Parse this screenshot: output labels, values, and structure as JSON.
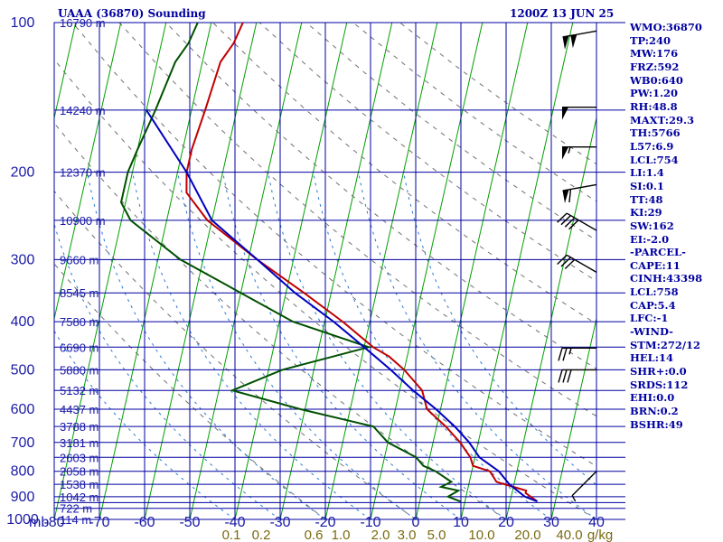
{
  "header": {
    "station": "UAAA (36870) Sounding",
    "time": "1200Z 13 JUN 25"
  },
  "stats": [
    "WMO:36870",
    "TP:240",
    "MW:176",
    "FRZ:592",
    "WB0:640",
    "PW:1.20",
    "RH:48.8",
    "MAXT:29.3",
    "TH:5766",
    "L57:6.9",
    "LCL:754",
    "LI:1.4",
    "SI:0.1",
    "TT:48",
    "KI:29",
    "SW:162",
    "EI:-2.0",
    "-PARCEL-",
    "CAPE:11",
    "CINH:43398",
    "LCL:758",
    "CAP:5.4",
    "LFC:-1",
    "-WIND-",
    "STM:272/12",
    "HEL:14",
    "SHR+:0.0",
    "SRDS:112",
    "EHI:0.0",
    "BRN:0.2",
    "BSHR:49"
  ],
  "colors": {
    "grid": "#0000a0",
    "isotherm": "#00a000",
    "temperature": "#c00000",
    "dewpoint": "#005000",
    "parcel": "#0000c0",
    "mixing_ratio": "#2a7ad0",
    "adiabat": "#707070",
    "wind_barb": "#000000"
  },
  "chart_data": {
    "type": "line",
    "title": "UAAA (36870) Sounding",
    "subtitle": "1200Z 13 JUN 25",
    "xlabel": "",
    "ylabel": "mb",
    "x_ticks": [
      "-80",
      "-70",
      "-60",
      "-50",
      "-40",
      "-30",
      "-20",
      "-10",
      "0",
      "10",
      "20",
      "30",
      "40"
    ],
    "y_ticks": [
      "100",
      "200",
      "300",
      "400",
      "500",
      "600",
      "700",
      "800",
      "900",
      "1000"
    ],
    "xlim": [
      -80,
      40
    ],
    "ylim": [
      1000,
      100
    ],
    "y_scale": "log",
    "pressure_levels": [
      100,
      150,
      200,
      250,
      300,
      350,
      400,
      450,
      500,
      550,
      600,
      650,
      700,
      750,
      800,
      850,
      900,
      925,
      950,
      1000
    ],
    "height_labels": [
      {
        "p": 100,
        "label": "16790 m"
      },
      {
        "p": 150,
        "label": "14240 m"
      },
      {
        "p": 200,
        "label": "12370 m"
      },
      {
        "p": 250,
        "label": "10900 m"
      },
      {
        "p": 300,
        "label": "9660 m"
      },
      {
        "p": 350,
        "label": "8545 m"
      },
      {
        "p": 400,
        "label": "7580 m"
      },
      {
        "p": 450,
        "label": "6690 m"
      },
      {
        "p": 500,
        "label": "5880 m"
      },
      {
        "p": 550,
        "label": "5132 m"
      },
      {
        "p": 600,
        "label": "4437 m"
      },
      {
        "p": 650,
        "label": "3788 m"
      },
      {
        "p": 700,
        "label": "3181 m"
      },
      {
        "p": 750,
        "label": "2603 m"
      },
      {
        "p": 800,
        "label": "2058 m"
      },
      {
        "p": 850,
        "label": "1538 m"
      },
      {
        "p": 900,
        "label": "1042 m"
      },
      {
        "p": 950,
        "label": "722 m"
      },
      {
        "p": 1000,
        "label": "114 m"
      }
    ],
    "mixing_ratio_labels": [
      "0.1",
      "0.2",
      "0.6",
      "1.0",
      "2.0",
      "3.0",
      "5.0",
      "10.0",
      "20.0",
      "40.0",
      "g/kg"
    ],
    "series": [
      {
        "name": "Temperature",
        "points": [
          [
            100,
            -63
          ],
          [
            110,
            -64
          ],
          [
            120,
            -66
          ],
          [
            150,
            -67
          ],
          [
            180,
            -68
          ],
          [
            200,
            -68
          ],
          [
            220,
            -67
          ],
          [
            250,
            -61
          ],
          [
            300,
            -48
          ],
          [
            350,
            -36
          ],
          [
            400,
            -26
          ],
          [
            450,
            -18
          ],
          [
            470,
            -14
          ],
          [
            500,
            -10
          ],
          [
            550,
            -5
          ],
          [
            600,
            -3
          ],
          [
            650,
            2
          ],
          [
            700,
            6
          ],
          [
            750,
            9
          ],
          [
            780,
            10
          ],
          [
            800,
            14
          ],
          [
            840,
            16
          ],
          [
            860,
            20
          ],
          [
            875,
            23
          ],
          [
            885,
            23
          ],
          [
            920,
            26
          ]
        ]
      },
      {
        "name": "Dewpoint",
        "points": [
          [
            100,
            -73
          ],
          [
            110,
            -74
          ],
          [
            120,
            -76
          ],
          [
            150,
            -78
          ],
          [
            180,
            -80
          ],
          [
            200,
            -81
          ],
          [
            230,
            -81
          ],
          [
            250,
            -78
          ],
          [
            300,
            -65
          ],
          [
            350,
            -50
          ],
          [
            400,
            -37
          ],
          [
            450,
            -19
          ],
          [
            500,
            -37
          ],
          [
            550,
            -47
          ],
          [
            600,
            -31
          ],
          [
            650,
            -14
          ],
          [
            700,
            -10
          ],
          [
            750,
            -3
          ],
          [
            780,
            -1
          ],
          [
            800,
            2
          ],
          [
            840,
            6
          ],
          [
            860,
            4
          ],
          [
            875,
            8
          ],
          [
            900,
            6
          ],
          [
            920,
            9
          ]
        ]
      },
      {
        "name": "Parcel",
        "points": [
          [
            150,
            -80
          ],
          [
            200,
            -68
          ],
          [
            250,
            -60
          ],
          [
            300,
            -48
          ],
          [
            350,
            -38
          ],
          [
            400,
            -28
          ],
          [
            450,
            -20
          ],
          [
            500,
            -13
          ],
          [
            550,
            -7
          ],
          [
            600,
            -1
          ],
          [
            650,
            4
          ],
          [
            700,
            8
          ],
          [
            750,
            11
          ],
          [
            800,
            16
          ],
          [
            850,
            19
          ],
          [
            900,
            23
          ],
          [
            920,
            26
          ]
        ]
      }
    ],
    "wind_barbs": [
      {
        "p": 104,
        "dir": 260,
        "spd": 100
      },
      {
        "p": 148,
        "dir": 270,
        "spd": 50
      },
      {
        "p": 178,
        "dir": 270,
        "spd": 55
      },
      {
        "p": 212,
        "dir": 260,
        "spd": 60
      },
      {
        "p": 262,
        "dir": 300,
        "spd": 40
      },
      {
        "p": 318,
        "dir": 300,
        "spd": 30
      },
      {
        "p": 452,
        "dir": 270,
        "spd": 25
      },
      {
        "p": 500,
        "dir": 270,
        "spd": 30
      },
      {
        "p": 800,
        "dir": 225,
        "spd": 5
      }
    ],
    "grid": true
  }
}
